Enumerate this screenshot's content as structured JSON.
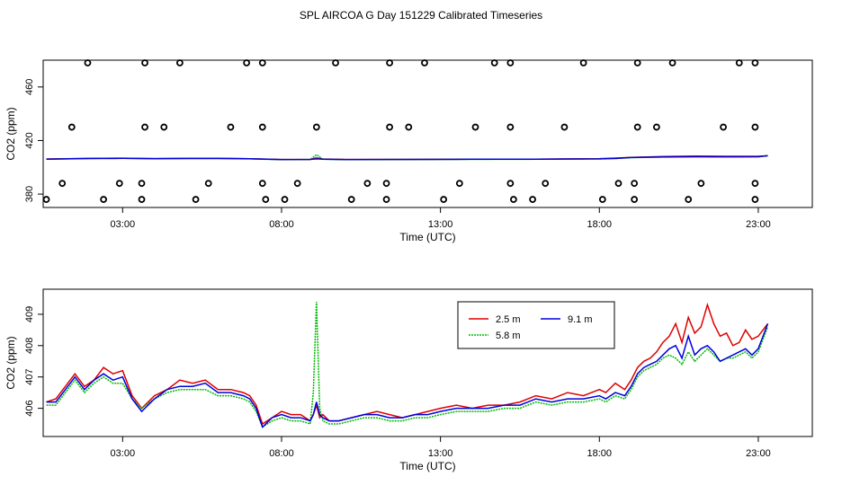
{
  "title": "SPL AIRCOA G  Day 151229  Calibrated Timeseries",
  "chart_data": [
    {
      "type": "scatter",
      "panel": "top",
      "xlabel": "Time (UTC)",
      "ylabel": "CO2 (ppm)",
      "xlim": [
        0.5,
        24.7
      ],
      "ylim": [
        370,
        480
      ],
      "xticks": [
        3,
        8,
        13,
        18,
        23
      ],
      "xtick_labels": [
        "03:00",
        "08:00",
        "13:00",
        "18:00",
        "23:00"
      ],
      "yticks": [
        380,
        420,
        460
      ],
      "ytick_labels": [
        "380",
        "420",
        "460"
      ],
      "markers": [
        {
          "x": 1.9,
          "y": 478
        },
        {
          "x": 3.7,
          "y": 478
        },
        {
          "x": 4.8,
          "y": 478
        },
        {
          "x": 6.9,
          "y": 478
        },
        {
          "x": 7.4,
          "y": 478
        },
        {
          "x": 9.7,
          "y": 478
        },
        {
          "x": 11.4,
          "y": 478
        },
        {
          "x": 12.5,
          "y": 478
        },
        {
          "x": 14.7,
          "y": 478
        },
        {
          "x": 15.2,
          "y": 478
        },
        {
          "x": 17.5,
          "y": 478
        },
        {
          "x": 19.2,
          "y": 478
        },
        {
          "x": 20.3,
          "y": 478
        },
        {
          "x": 22.4,
          "y": 478
        },
        {
          "x": 22.9,
          "y": 478
        },
        {
          "x": 1.4,
          "y": 430
        },
        {
          "x": 3.7,
          "y": 430
        },
        {
          "x": 4.3,
          "y": 430
        },
        {
          "x": 6.4,
          "y": 430
        },
        {
          "x": 7.4,
          "y": 430
        },
        {
          "x": 9.1,
          "y": 430
        },
        {
          "x": 11.4,
          "y": 430
        },
        {
          "x": 12.0,
          "y": 430
        },
        {
          "x": 14.1,
          "y": 430
        },
        {
          "x": 15.2,
          "y": 430
        },
        {
          "x": 16.9,
          "y": 430
        },
        {
          "x": 19.2,
          "y": 430
        },
        {
          "x": 19.8,
          "y": 430
        },
        {
          "x": 21.9,
          "y": 430
        },
        {
          "x": 22.9,
          "y": 430
        },
        {
          "x": 1.1,
          "y": 388
        },
        {
          "x": 2.9,
          "y": 388
        },
        {
          "x": 3.6,
          "y": 388
        },
        {
          "x": 5.7,
          "y": 388
        },
        {
          "x": 7.4,
          "y": 388
        },
        {
          "x": 8.5,
          "y": 388
        },
        {
          "x": 10.7,
          "y": 388
        },
        {
          "x": 11.3,
          "y": 388
        },
        {
          "x": 13.6,
          "y": 388
        },
        {
          "x": 15.2,
          "y": 388
        },
        {
          "x": 16.3,
          "y": 388
        },
        {
          "x": 18.6,
          "y": 388
        },
        {
          "x": 19.1,
          "y": 388
        },
        {
          "x": 21.2,
          "y": 388
        },
        {
          "x": 22.9,
          "y": 388
        },
        {
          "x": 0.6,
          "y": 376
        },
        {
          "x": 2.4,
          "y": 376
        },
        {
          "x": 3.6,
          "y": 376
        },
        {
          "x": 5.3,
          "y": 376
        },
        {
          "x": 7.5,
          "y": 376
        },
        {
          "x": 8.1,
          "y": 376
        },
        {
          "x": 10.2,
          "y": 376
        },
        {
          "x": 11.3,
          "y": 376
        },
        {
          "x": 13.1,
          "y": 376
        },
        {
          "x": 15.3,
          "y": 376
        },
        {
          "x": 15.9,
          "y": 376
        },
        {
          "x": 18.1,
          "y": 376
        },
        {
          "x": 19.1,
          "y": 376
        },
        {
          "x": 20.8,
          "y": 376
        },
        {
          "x": 22.9,
          "y": 376
        }
      ],
      "series": [
        {
          "name": "2.5 m",
          "color": "#dd0000",
          "x": [
            0.6,
            2,
            3,
            4,
            5,
            6,
            7,
            8,
            8.9,
            9.1,
            9.3,
            10,
            12,
            14,
            16,
            18,
            18.5,
            19,
            20,
            21,
            22,
            23,
            23.3
          ],
          "values": [
            406.2,
            406.6,
            406.8,
            406.5,
            406.6,
            406.7,
            406.4,
            405.8,
            405.9,
            407,
            406.2,
            405.8,
            405.9,
            406.0,
            406.1,
            406.5,
            406.9,
            407.4,
            408.0,
            408.4,
            408.2,
            408.2,
            408.6
          ]
        },
        {
          "name": "5.8 m",
          "color": "#00bb00",
          "x": [
            0.6,
            2,
            3,
            4,
            5,
            6,
            7,
            8,
            8.9,
            9.1,
            9.3,
            10,
            12,
            14,
            16,
            18,
            18.5,
            19,
            20,
            21,
            22,
            23,
            23.3
          ],
          "values": [
            406.1,
            406.5,
            406.6,
            406.4,
            406.5,
            406.5,
            406.3,
            405.7,
            405.8,
            409.4,
            406.0,
            405.7,
            405.8,
            405.9,
            406.0,
            406.2,
            406.5,
            407.2,
            407.6,
            407.8,
            407.7,
            407.8,
            408.6
          ]
        },
        {
          "name": "9.1 m",
          "color": "#0000dd",
          "x": [
            0.6,
            2,
            3,
            4,
            5,
            6,
            7,
            8,
            8.9,
            9.1,
            9.3,
            10,
            12,
            14,
            16,
            18,
            18.5,
            19,
            20,
            21,
            22,
            23,
            23.3
          ],
          "values": [
            406.1,
            406.6,
            406.7,
            406.5,
            406.6,
            406.6,
            406.4,
            405.8,
            405.9,
            406.3,
            406.1,
            405.8,
            405.9,
            406.0,
            406.1,
            406.3,
            406.6,
            407.3,
            407.7,
            407.9,
            407.8,
            407.9,
            408.7
          ]
        }
      ]
    },
    {
      "type": "line",
      "panel": "bottom",
      "xlabel": "Time (UTC)",
      "ylabel": "CO2 (ppm)",
      "xlim": [
        0.5,
        24.7
      ],
      "ylim": [
        405.1,
        409.8
      ],
      "xticks": [
        3,
        8,
        13,
        18,
        23
      ],
      "xtick_labels": [
        "03:00",
        "08:00",
        "13:00",
        "18:00",
        "23:00"
      ],
      "yticks": [
        406,
        407,
        408,
        409
      ],
      "ytick_labels": [
        "406",
        "407",
        "408",
        "409"
      ],
      "legend": "top-center",
      "series": [
        {
          "name": "2.5 m",
          "color": "#dd0000",
          "x": [
            0.6,
            0.9,
            1.2,
            1.5,
            1.8,
            2.1,
            2.4,
            2.7,
            3.0,
            3.3,
            3.6,
            4.0,
            4.4,
            4.8,
            5.2,
            5.6,
            6.0,
            6.4,
            6.8,
            7.0,
            7.2,
            7.4,
            7.7,
            8.0,
            8.3,
            8.6,
            8.9,
            9.0,
            9.1,
            9.2,
            9.3,
            9.5,
            9.8,
            10.2,
            10.6,
            11.0,
            11.4,
            11.8,
            12.2,
            12.6,
            13.0,
            13.5,
            14.0,
            14.5,
            15.0,
            15.5,
            16.0,
            16.5,
            17.0,
            17.5,
            18.0,
            18.2,
            18.5,
            18.8,
            19.0,
            19.2,
            19.4,
            19.6,
            19.8,
            20.0,
            20.2,
            20.4,
            20.6,
            20.8,
            21.0,
            21.2,
            21.4,
            21.6,
            21.8,
            22.0,
            22.2,
            22.4,
            22.6,
            22.8,
            23.0,
            23.3
          ],
          "values": [
            406.2,
            406.3,
            406.7,
            407.1,
            406.7,
            406.9,
            407.3,
            407.1,
            407.2,
            406.4,
            406.0,
            406.4,
            406.6,
            406.9,
            406.8,
            406.9,
            406.6,
            406.6,
            406.5,
            406.4,
            406.1,
            405.5,
            405.7,
            405.9,
            405.8,
            405.8,
            405.6,
            405.8,
            406.1,
            405.7,
            405.8,
            405.6,
            405.6,
            405.7,
            405.8,
            405.9,
            405.8,
            405.7,
            405.8,
            405.9,
            406.0,
            406.1,
            406.0,
            406.1,
            406.1,
            406.2,
            406.4,
            406.3,
            406.5,
            406.4,
            406.6,
            406.5,
            406.8,
            406.6,
            406.9,
            407.3,
            407.5,
            407.6,
            407.8,
            408.1,
            408.3,
            408.7,
            408.1,
            408.9,
            408.4,
            408.6,
            409.3,
            408.7,
            408.3,
            408.4,
            408.0,
            408.1,
            408.5,
            408.2,
            408.3,
            408.7
          ]
        },
        {
          "name": "5.8 m",
          "color": "#00bb00",
          "x": [
            0.6,
            0.9,
            1.2,
            1.5,
            1.8,
            2.1,
            2.4,
            2.7,
            3.0,
            3.3,
            3.6,
            4.0,
            4.4,
            4.8,
            5.2,
            5.6,
            6.0,
            6.4,
            6.8,
            7.0,
            7.2,
            7.4,
            7.7,
            8.0,
            8.3,
            8.6,
            8.9,
            9.0,
            9.1,
            9.2,
            9.3,
            9.5,
            9.8,
            10.2,
            10.6,
            11.0,
            11.4,
            11.8,
            12.2,
            12.6,
            13.0,
            13.5,
            14.0,
            14.5,
            15.0,
            15.5,
            16.0,
            16.5,
            17.0,
            17.5,
            18.0,
            18.2,
            18.5,
            18.8,
            19.0,
            19.2,
            19.4,
            19.6,
            19.8,
            20.0,
            20.2,
            20.4,
            20.6,
            20.8,
            21.0,
            21.2,
            21.4,
            21.6,
            21.8,
            22.0,
            22.2,
            22.4,
            22.6,
            22.8,
            23.0,
            23.3
          ],
          "values": [
            406.1,
            406.1,
            406.5,
            406.9,
            406.5,
            406.8,
            407.0,
            406.8,
            406.8,
            406.3,
            406.0,
            406.3,
            406.5,
            406.6,
            406.6,
            406.6,
            406.4,
            406.4,
            406.3,
            406.2,
            405.9,
            405.4,
            405.6,
            405.7,
            405.6,
            405.6,
            405.5,
            406.5,
            409.4,
            406.0,
            405.6,
            405.5,
            405.5,
            405.6,
            405.7,
            405.7,
            405.6,
            405.6,
            405.7,
            405.7,
            405.8,
            405.9,
            405.9,
            405.9,
            406.0,
            406.0,
            406.2,
            406.1,
            406.2,
            406.2,
            406.3,
            406.2,
            406.4,
            406.3,
            406.6,
            407.0,
            407.2,
            407.3,
            407.4,
            407.6,
            407.7,
            407.6,
            407.4,
            407.8,
            407.5,
            407.7,
            407.9,
            407.7,
            407.5,
            407.6,
            407.6,
            407.7,
            407.8,
            407.6,
            407.8,
            408.6
          ]
        },
        {
          "name": "9.1 m",
          "color": "#0000dd",
          "x": [
            0.6,
            0.9,
            1.2,
            1.5,
            1.8,
            2.1,
            2.4,
            2.7,
            3.0,
            3.3,
            3.6,
            4.0,
            4.4,
            4.8,
            5.2,
            5.6,
            6.0,
            6.4,
            6.8,
            7.0,
            7.2,
            7.4,
            7.7,
            8.0,
            8.3,
            8.6,
            8.9,
            9.0,
            9.1,
            9.2,
            9.3,
            9.5,
            9.8,
            10.2,
            10.6,
            11.0,
            11.4,
            11.8,
            12.2,
            12.6,
            13.0,
            13.5,
            14.0,
            14.5,
            15.0,
            15.5,
            16.0,
            16.5,
            17.0,
            17.5,
            18.0,
            18.2,
            18.5,
            18.8,
            19.0,
            19.2,
            19.4,
            19.6,
            19.8,
            20.0,
            20.2,
            20.4,
            20.6,
            20.8,
            21.0,
            21.2,
            21.4,
            21.6,
            21.8,
            22.0,
            22.2,
            22.4,
            22.6,
            22.8,
            23.0,
            23.3
          ],
          "values": [
            406.2,
            406.2,
            406.6,
            407.0,
            406.6,
            406.9,
            407.1,
            406.9,
            407.0,
            406.3,
            405.9,
            406.3,
            406.6,
            406.7,
            406.7,
            406.8,
            406.5,
            406.5,
            406.4,
            406.3,
            406.0,
            405.4,
            405.7,
            405.8,
            405.7,
            405.7,
            405.6,
            405.8,
            406.2,
            405.8,
            405.7,
            405.6,
            405.6,
            405.7,
            405.8,
            405.8,
            405.7,
            405.7,
            405.8,
            405.8,
            405.9,
            406.0,
            406.0,
            406.0,
            406.1,
            406.1,
            406.3,
            406.2,
            406.3,
            406.3,
            406.4,
            406.3,
            406.5,
            406.4,
            406.7,
            407.1,
            407.3,
            407.4,
            407.5,
            407.7,
            407.9,
            408.0,
            407.6,
            408.3,
            407.7,
            407.9,
            408.0,
            407.8,
            407.5,
            407.6,
            407.7,
            407.8,
            407.9,
            407.7,
            407.9,
            408.7
          ]
        }
      ]
    }
  ]
}
